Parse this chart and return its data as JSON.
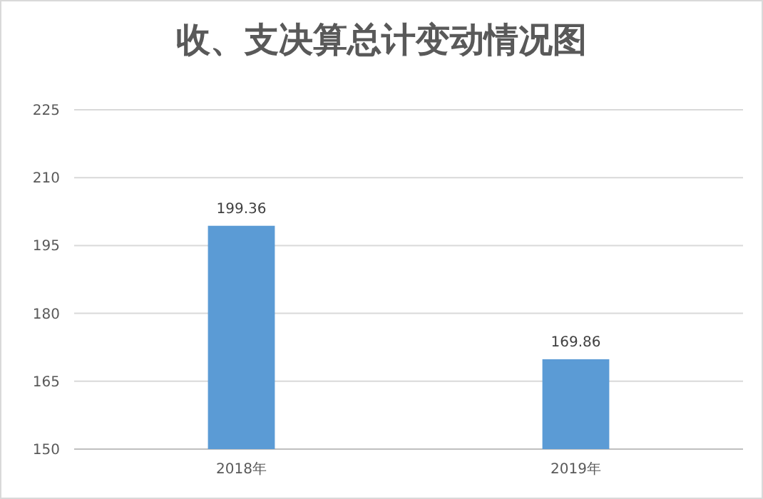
{
  "chart_data": {
    "type": "bar",
    "title": "收、支决算总计变动情况图",
    "categories": [
      "2018年",
      "2019年"
    ],
    "values": [
      199.36,
      169.86
    ],
    "color": "#5b9bd5",
    "ylim": [
      150,
      225
    ],
    "yticks": [
      150,
      165,
      180,
      195,
      210,
      225
    ],
    "grid": "y",
    "data_labels": true
  }
}
